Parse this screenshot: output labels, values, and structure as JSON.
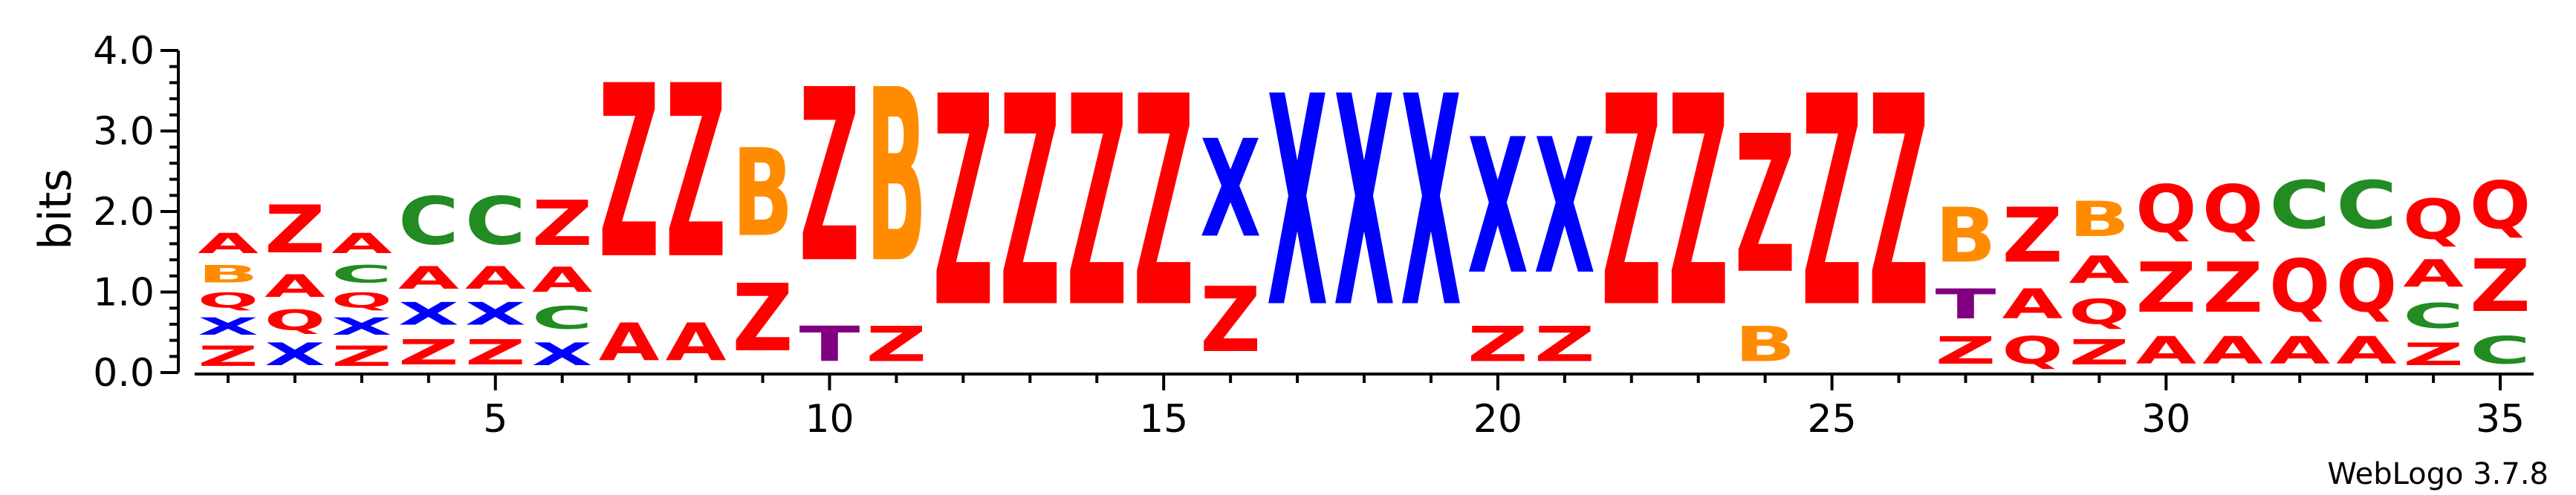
{
  "chart_data": {
    "type": "sequence-logo",
    "ylabel": "bits",
    "ylim": [
      0,
      4.0
    ],
    "yticks": [
      "0.0",
      "1.0",
      "2.0",
      "3.0",
      "4.0"
    ],
    "xlim": [
      0.5,
      35.5
    ],
    "xticks": [
      "5",
      "10",
      "15",
      "20",
      "25",
      "30",
      "35"
    ],
    "xtick_values": [
      5,
      10,
      15,
      20,
      25,
      30,
      35
    ],
    "credit": "WebLogo 3.7.8",
    "colors": {
      "Z": "#ff0000",
      "A": "#ff0000",
      "X": "#0000ff",
      "B": "#ff8c00",
      "Q": "#ff0000",
      "C": "#228b22",
      "T": "#800080"
    },
    "columns": [
      {
        "position": 1,
        "stack": [
          {
            "letter": "Z",
            "height": 0.4
          },
          {
            "letter": "X",
            "height": 0.35
          },
          {
            "letter": "Q",
            "height": 0.3
          },
          {
            "letter": "B",
            "height": 0.35
          },
          {
            "letter": "A",
            "height": 0.4
          }
        ]
      },
      {
        "position": 2,
        "stack": [
          {
            "letter": "X",
            "height": 0.45
          },
          {
            "letter": "Q",
            "height": 0.4
          },
          {
            "letter": "A",
            "height": 0.45
          },
          {
            "letter": "Z",
            "height": 0.95
          }
        ]
      },
      {
        "position": 3,
        "stack": [
          {
            "letter": "Z",
            "height": 0.4
          },
          {
            "letter": "X",
            "height": 0.35
          },
          {
            "letter": "Q",
            "height": 0.3
          },
          {
            "letter": "C",
            "height": 0.35
          },
          {
            "letter": "A",
            "height": 0.4
          }
        ]
      },
      {
        "position": 4,
        "stack": [
          {
            "letter": "Z",
            "height": 0.5
          },
          {
            "letter": "X",
            "height": 0.45
          },
          {
            "letter": "A",
            "height": 0.45
          },
          {
            "letter": "C",
            "height": 0.95
          }
        ]
      },
      {
        "position": 5,
        "stack": [
          {
            "letter": "Z",
            "height": 0.5
          },
          {
            "letter": "X",
            "height": 0.45
          },
          {
            "letter": "A",
            "height": 0.45
          },
          {
            "letter": "C",
            "height": 0.95
          }
        ]
      },
      {
        "position": 6,
        "stack": [
          {
            "letter": "X",
            "height": 0.45
          },
          {
            "letter": "C",
            "height": 0.45
          },
          {
            "letter": "A",
            "height": 0.5
          },
          {
            "letter": "Z",
            "height": 0.9
          }
        ]
      },
      {
        "position": 7,
        "stack": [
          {
            "letter": "A",
            "height": 0.75
          },
          {
            "letter": "Z",
            "height": 3.45
          }
        ]
      },
      {
        "position": 8,
        "stack": [
          {
            "letter": "A",
            "height": 0.75
          },
          {
            "letter": "Z",
            "height": 3.45
          }
        ]
      },
      {
        "position": 9,
        "stack": [
          {
            "letter": "Z",
            "height": 1.35
          },
          {
            "letter": "B",
            "height": 1.75
          }
        ]
      },
      {
        "position": 10,
        "stack": [
          {
            "letter": "T",
            "height": 0.7
          },
          {
            "letter": "Z",
            "height": 3.45
          }
        ]
      },
      {
        "position": 11,
        "stack": [
          {
            "letter": "Z",
            "height": 0.7
          },
          {
            "letter": "B",
            "height": 3.45
          }
        ]
      },
      {
        "position": 12,
        "stack": [
          {
            "letter": "Z",
            "height": 4.2
          }
        ]
      },
      {
        "position": 13,
        "stack": [
          {
            "letter": "Z",
            "height": 4.2
          }
        ]
      },
      {
        "position": 14,
        "stack": [
          {
            "letter": "Z",
            "height": 4.2
          }
        ]
      },
      {
        "position": 15,
        "stack": [
          {
            "letter": "Z",
            "height": 4.2
          }
        ]
      },
      {
        "position": 16,
        "stack": [
          {
            "letter": "Z",
            "height": 1.3
          },
          {
            "letter": "X",
            "height": 1.95
          }
        ]
      },
      {
        "position": 17,
        "stack": [
          {
            "letter": "X",
            "height": 4.2
          }
        ]
      },
      {
        "position": 18,
        "stack": [
          {
            "letter": "X",
            "height": 4.2
          }
        ]
      },
      {
        "position": 19,
        "stack": [
          {
            "letter": "X",
            "height": 4.2
          }
        ]
      },
      {
        "position": 20,
        "stack": [
          {
            "letter": "Z",
            "height": 0.7
          },
          {
            "letter": "X",
            "height": 2.7
          }
        ]
      },
      {
        "position": 21,
        "stack": [
          {
            "letter": "Z",
            "height": 0.7
          },
          {
            "letter": "X",
            "height": 2.7
          }
        ]
      },
      {
        "position": 22,
        "stack": [
          {
            "letter": "Z",
            "height": 4.2
          }
        ]
      },
      {
        "position": 23,
        "stack": [
          {
            "letter": "Z",
            "height": 4.2
          }
        ]
      },
      {
        "position": 24,
        "stack": [
          {
            "letter": "B",
            "height": 0.7
          },
          {
            "letter": "Z",
            "height": 2.75
          }
        ]
      },
      {
        "position": 25,
        "stack": [
          {
            "letter": "Z",
            "height": 4.2
          }
        ]
      },
      {
        "position": 26,
        "stack": [
          {
            "letter": "Z",
            "height": 4.2
          }
        ]
      },
      {
        "position": 27,
        "stack": [
          {
            "letter": "Z",
            "height": 0.55
          },
          {
            "letter": "T",
            "height": 0.6
          },
          {
            "letter": "B",
            "height": 1.1
          }
        ]
      },
      {
        "position": 28,
        "stack": [
          {
            "letter": "Q",
            "height": 0.55
          },
          {
            "letter": "A",
            "height": 0.6
          },
          {
            "letter": "Z",
            "height": 1.1
          }
        ]
      },
      {
        "position": 29,
        "stack": [
          {
            "letter": "Z",
            "height": 0.5
          },
          {
            "letter": "Q",
            "height": 0.5
          },
          {
            "letter": "A",
            "height": 0.55
          },
          {
            "letter": "B",
            "height": 0.7
          }
        ]
      },
      {
        "position": 30,
        "stack": [
          {
            "letter": "A",
            "height": 0.55
          },
          {
            "letter": "Z",
            "height": 1.0
          },
          {
            "letter": "Q",
            "height": 0.95
          }
        ]
      },
      {
        "position": 31,
        "stack": [
          {
            "letter": "A",
            "height": 0.55
          },
          {
            "letter": "Z",
            "height": 1.0
          },
          {
            "letter": "Q",
            "height": 0.95
          }
        ]
      },
      {
        "position": 32,
        "stack": [
          {
            "letter": "A",
            "height": 0.55
          },
          {
            "letter": "Q",
            "height": 1.05
          },
          {
            "letter": "C",
            "height": 0.95
          }
        ]
      },
      {
        "position": 33,
        "stack": [
          {
            "letter": "A",
            "height": 0.55
          },
          {
            "letter": "Q",
            "height": 1.05
          },
          {
            "letter": "C",
            "height": 0.95
          }
        ]
      },
      {
        "position": 34,
        "stack": [
          {
            "letter": "Z",
            "height": 0.45
          },
          {
            "letter": "C",
            "height": 0.5
          },
          {
            "letter": "A",
            "height": 0.55
          },
          {
            "letter": "Q",
            "height": 0.8
          }
        ]
      },
      {
        "position": 35,
        "stack": [
          {
            "letter": "C",
            "height": 0.55
          },
          {
            "letter": "Z",
            "height": 1.05
          },
          {
            "letter": "Q",
            "height": 0.95
          }
        ]
      }
    ]
  }
}
